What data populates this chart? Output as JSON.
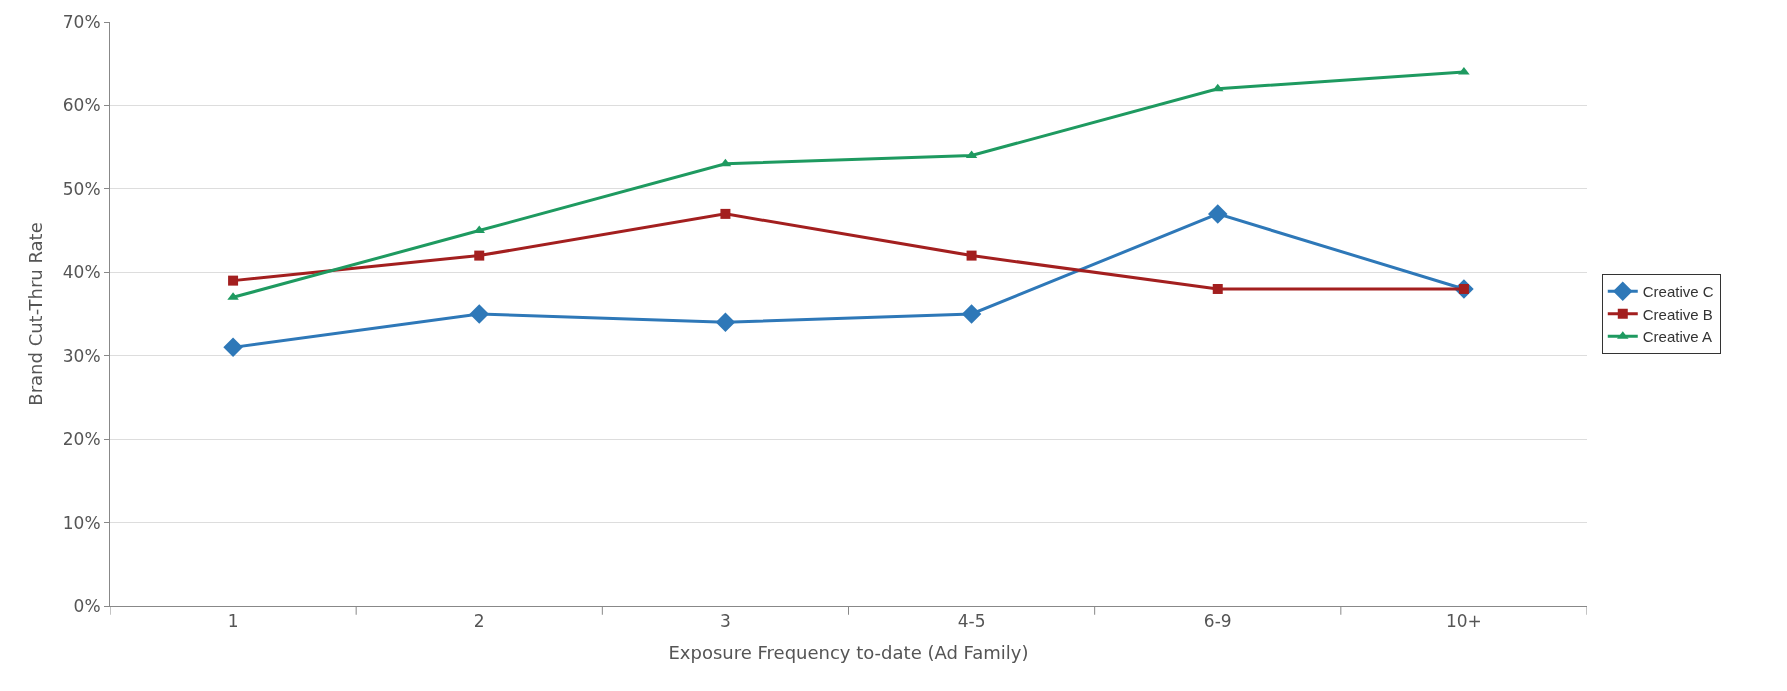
{
  "chart_data": {
    "type": "line",
    "xlabel": "Exposure Frequency to-date (Ad Family)",
    "ylabel": "Brand Cut-Thru Rate",
    "categories": [
      "1",
      "2",
      "3",
      "4-5",
      "6-9",
      "10+"
    ],
    "series": [
      {
        "name": "Creative C",
        "color": "#2e78b8",
        "marker": "diamond",
        "values": [
          31,
          35,
          34,
          35,
          47,
          38
        ]
      },
      {
        "name": "Creative B",
        "color": "#a31f1f",
        "marker": "square",
        "values": [
          39,
          42,
          47,
          42,
          38,
          38
        ]
      },
      {
        "name": "Creative A",
        "color": "#1e9a60",
        "marker": "triangle",
        "values": [
          37,
          45,
          53,
          54,
          62,
          64
        ]
      }
    ],
    "ylim": [
      0,
      70
    ],
    "yticks": [
      {
        "value": 0,
        "label": "0%"
      },
      {
        "value": 10,
        "label": "10%"
      },
      {
        "value": 20,
        "label": "20%"
      },
      {
        "value": 30,
        "label": "30%"
      },
      {
        "value": 40,
        "label": "40%"
      },
      {
        "value": 50,
        "label": "50%"
      },
      {
        "value": 60,
        "label": "60%"
      },
      {
        "value": 70,
        "label": "70%"
      }
    ],
    "grid": "y",
    "legend": "right"
  }
}
